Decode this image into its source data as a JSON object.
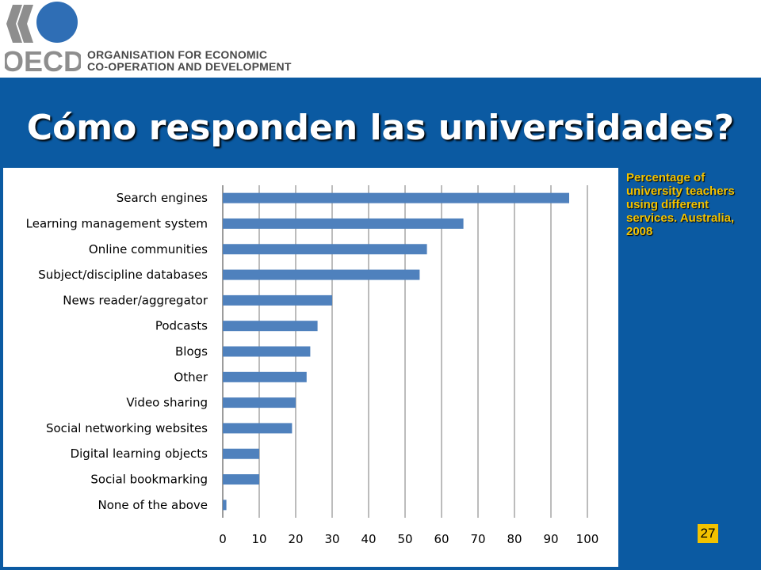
{
  "header": {
    "logo_text": "OECD",
    "org_name_line1": "ORGANISATION FOR ECONOMIC",
    "org_name_line2": "CO-OPERATION AND DEVELOPMENT"
  },
  "slide": {
    "title": "Cómo responden las universidades?",
    "caption": "Percentage of university teachers using different services. Australia, 2008",
    "page_number": "27"
  },
  "colors": {
    "band": "#0b5aa2",
    "bar": "#4f81bd",
    "caption": "#f2c200",
    "logo": "#8e8e8e",
    "logo_accent": "#2f6eb5"
  },
  "chart_data": {
    "type": "bar",
    "orientation": "horizontal",
    "title": "",
    "xlabel": "",
    "ylabel": "",
    "categories": [
      "Search engines",
      "Learning management  system",
      "Online communities",
      "Subject/discipline databases",
      "News reader/aggregator",
      "Podcasts",
      "Blogs",
      "Other",
      "Video sharing",
      "Social networking websites",
      "Digital learning objects",
      "Social bookmarking",
      "None of the above"
    ],
    "values": [
      95,
      66,
      56,
      54,
      30,
      26,
      24,
      23,
      20,
      19,
      10,
      10,
      1
    ],
    "xlim": [
      0,
      100
    ],
    "xticks": [
      0,
      10,
      20,
      30,
      40,
      50,
      60,
      70,
      80,
      90,
      100
    ],
    "grid": true,
    "legend": false
  }
}
